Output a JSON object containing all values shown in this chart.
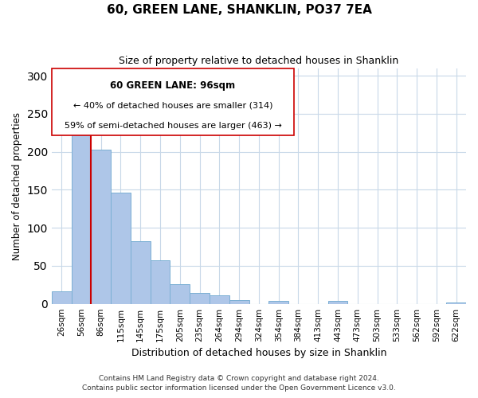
{
  "title": "60, GREEN LANE, SHANKLIN, PO37 7EA",
  "subtitle": "Size of property relative to detached houses in Shanklin",
  "xlabel": "Distribution of detached houses by size in Shanklin",
  "ylabel": "Number of detached properties",
  "bar_labels": [
    "26sqm",
    "56sqm",
    "86sqm",
    "115sqm",
    "145sqm",
    "175sqm",
    "205sqm",
    "235sqm",
    "264sqm",
    "294sqm",
    "324sqm",
    "354sqm",
    "384sqm",
    "413sqm",
    "443sqm",
    "473sqm",
    "503sqm",
    "533sqm",
    "562sqm",
    "592sqm",
    "622sqm"
  ],
  "bar_heights": [
    16,
    224,
    203,
    146,
    82,
    57,
    26,
    14,
    11,
    5,
    0,
    4,
    0,
    0,
    4,
    0,
    0,
    0,
    0,
    0,
    2
  ],
  "bar_color": "#aec6e8",
  "bar_edge_color": "#7bafd4",
  "ylim": [
    0,
    310
  ],
  "yticks": [
    0,
    50,
    100,
    150,
    200,
    250,
    300
  ],
  "property_line_color": "#cc0000",
  "annotation_title": "60 GREEN LANE: 96sqm",
  "annotation_line1": "← 40% of detached houses are smaller (314)",
  "annotation_line2": "59% of semi-detached houses are larger (463) →",
  "footnote1": "Contains HM Land Registry data © Crown copyright and database right 2024.",
  "footnote2": "Contains public sector information licensed under the Open Government Licence v3.0.",
  "bg_color": "#ffffff",
  "grid_color": "#c8d8e8",
  "figsize": [
    6.0,
    5.0
  ],
  "dpi": 100
}
